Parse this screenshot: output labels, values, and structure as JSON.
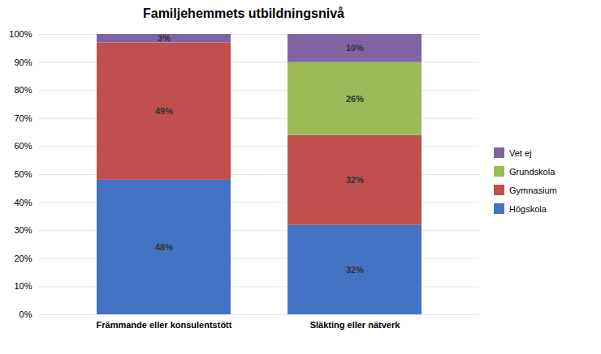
{
  "chart_data": {
    "type": "bar",
    "title": "Familjehemmets utbildningsnivå",
    "stacked": true,
    "categories": [
      "Främmande eller konsulentstött",
      "Släkting eller nätverk"
    ],
    "series": [
      {
        "name": "Högskola",
        "color": "#4472C4",
        "values": [
          48,
          32
        ],
        "value_labels": [
          "48%",
          "32%"
        ]
      },
      {
        "name": "Gymnasium",
        "color": "#C0504D",
        "values": [
          49,
          32
        ],
        "value_labels": [
          "49%",
          "32%"
        ]
      },
      {
        "name": "Grundskola",
        "color": "#9BBB59",
        "values": [
          0,
          26
        ],
        "value_labels": [
          null,
          "26%"
        ]
      },
      {
        "name": "Vet ej",
        "color": "#8064A2",
        "values": [
          3,
          10
        ],
        "value_labels": [
          "3%",
          "10%"
        ]
      }
    ],
    "ylim": [
      0,
      100
    ],
    "yticks": [
      {
        "value": 0,
        "label": "0%"
      },
      {
        "value": 10,
        "label": "10%"
      },
      {
        "value": 20,
        "label": "20%"
      },
      {
        "value": 30,
        "label": "30%"
      },
      {
        "value": 40,
        "label": "40%"
      },
      {
        "value": 50,
        "label": "50%"
      },
      {
        "value": 60,
        "label": "60%"
      },
      {
        "value": 70,
        "label": "70%"
      },
      {
        "value": 80,
        "label": "80%"
      },
      {
        "value": 90,
        "label": "90%"
      },
      {
        "value": 100,
        "label": "100%"
      }
    ],
    "grid": true,
    "data_labels": true,
    "legend": "right"
  }
}
